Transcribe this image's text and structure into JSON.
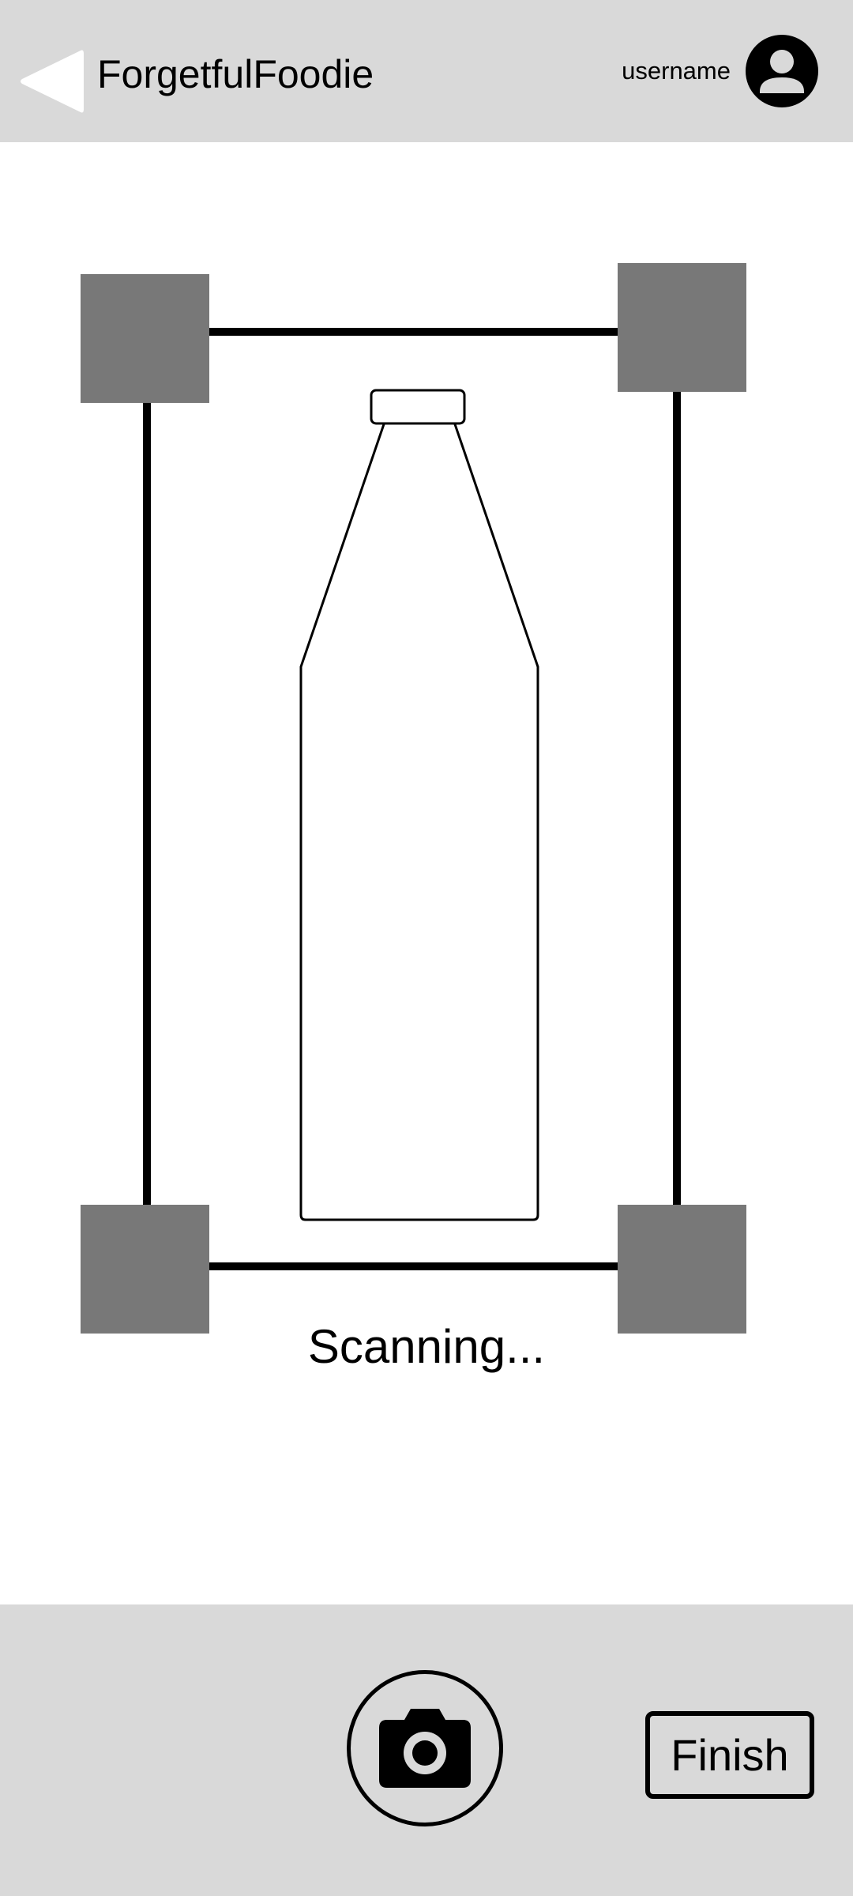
{
  "header": {
    "back_icon": "back-arrow-icon",
    "title": "ForgetfulFoodie",
    "username": "username",
    "avatar_icon": "user-avatar-icon"
  },
  "scanner": {
    "status": "Scanning...",
    "subject_icon": "bottle-icon",
    "corner_color": "#787878",
    "frame_color": "#000000"
  },
  "footer": {
    "capture_icon": "camera-icon",
    "finish_label": "Finish"
  },
  "colors": {
    "bar_background": "#d9d9d9",
    "page_background": "#ffffff"
  }
}
